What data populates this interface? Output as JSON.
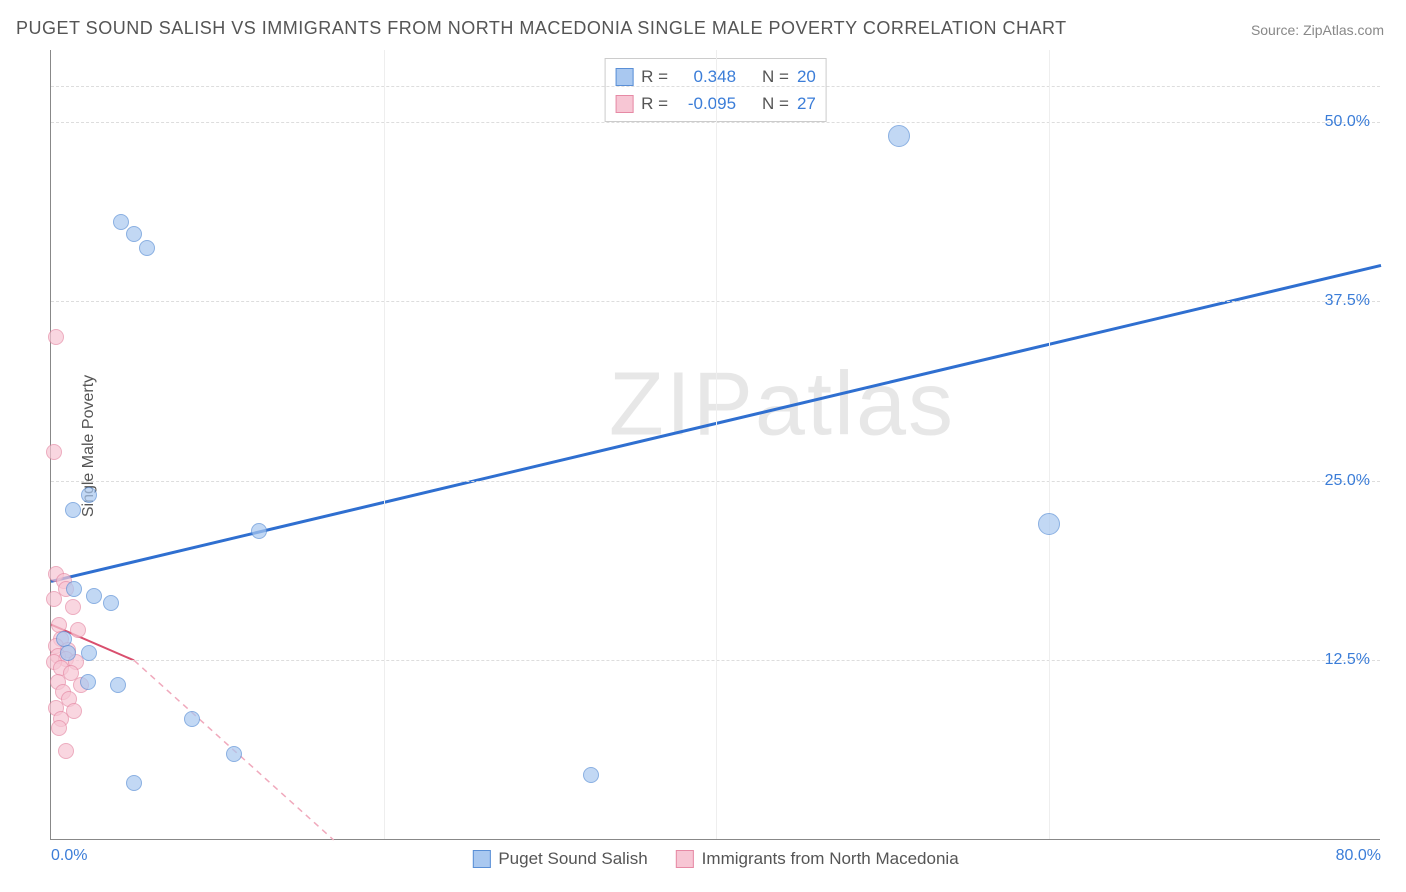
{
  "title": "PUGET SOUND SALISH VS IMMIGRANTS FROM NORTH MACEDONIA SINGLE MALE POVERTY CORRELATION CHART",
  "source": "Source: ZipAtlas.com",
  "ylabel": "Single Male Poverty",
  "watermark": "ZIPatlas",
  "chart": {
    "type": "scatter",
    "xlim": [
      0,
      80
    ],
    "ylim": [
      0,
      55
    ],
    "background_color": "#ffffff",
    "grid_color": "#dddddd",
    "axis_color": "#888888",
    "tick_color": "#3b7dd8",
    "tick_fontsize": 16,
    "yticks": [
      {
        "v": 12.5,
        "label": "12.5%"
      },
      {
        "v": 25.0,
        "label": "25.0%"
      },
      {
        "v": 37.5,
        "label": "37.5%"
      },
      {
        "v": 50.0,
        "label": "50.0%"
      }
    ],
    "xticks_minor": [
      20,
      40,
      60
    ],
    "xtick_left": {
      "v": 0,
      "label": "0.0%"
    },
    "xtick_right": {
      "v": 80,
      "label": "80.0%"
    }
  },
  "series": [
    {
      "name": "Puget Sound Salish",
      "color_fill": "#a9c8f0",
      "color_stroke": "#5a8fd6",
      "marker_size": 16,
      "r_value": "0.348",
      "n_value": "20",
      "trend": {
        "x1": 0,
        "y1": 18.0,
        "x2": 80,
        "y2": 40.0,
        "stroke": "#2f6fd0",
        "width": 3,
        "dash": "none"
      },
      "points": [
        {
          "x": 4.2,
          "y": 43.0
        },
        {
          "x": 5.0,
          "y": 42.2
        },
        {
          "x": 5.8,
          "y": 41.2
        },
        {
          "x": 51.0,
          "y": 49.0,
          "large": true
        },
        {
          "x": 2.3,
          "y": 24.0
        },
        {
          "x": 1.3,
          "y": 23.0
        },
        {
          "x": 12.5,
          "y": 21.5
        },
        {
          "x": 60.0,
          "y": 22.0,
          "large": true
        },
        {
          "x": 1.4,
          "y": 17.5
        },
        {
          "x": 2.6,
          "y": 17.0
        },
        {
          "x": 3.6,
          "y": 16.5
        },
        {
          "x": 0.8,
          "y": 14.0
        },
        {
          "x": 1.0,
          "y": 13.0
        },
        {
          "x": 2.3,
          "y": 13.0
        },
        {
          "x": 2.2,
          "y": 11.0
        },
        {
          "x": 4.0,
          "y": 10.8
        },
        {
          "x": 8.5,
          "y": 8.4
        },
        {
          "x": 11.0,
          "y": 6.0
        },
        {
          "x": 5.0,
          "y": 4.0
        },
        {
          "x": 32.5,
          "y": 4.5
        }
      ]
    },
    {
      "name": "Immigrants from North Macedonia",
      "color_fill": "#f7c6d4",
      "color_stroke": "#e68aa5",
      "marker_size": 16,
      "r_value": "-0.095",
      "n_value": "27",
      "trend_solid": {
        "x1": 0,
        "y1": 15.0,
        "x2": 5,
        "y2": 12.5,
        "stroke": "#d94f6e",
        "width": 2
      },
      "trend_dash": {
        "x1": 5,
        "y1": 12.5,
        "x2": 17,
        "y2": 0,
        "stroke": "#f0a9bc",
        "width": 1.5,
        "dash": "6 5"
      },
      "points": [
        {
          "x": 0.3,
          "y": 35.0
        },
        {
          "x": 0.2,
          "y": 27.0
        },
        {
          "x": 0.3,
          "y": 18.5
        },
        {
          "x": 0.8,
          "y": 18.0
        },
        {
          "x": 0.9,
          "y": 17.5
        },
        {
          "x": 0.2,
          "y": 16.8
        },
        {
          "x": 1.3,
          "y": 16.2
        },
        {
          "x": 0.5,
          "y": 15.0
        },
        {
          "x": 1.6,
          "y": 14.6
        },
        {
          "x": 0.6,
          "y": 14.0
        },
        {
          "x": 0.3,
          "y": 13.5
        },
        {
          "x": 1.0,
          "y": 13.2
        },
        {
          "x": 0.4,
          "y": 12.8
        },
        {
          "x": 0.9,
          "y": 12.6
        },
        {
          "x": 1.5,
          "y": 12.4
        },
        {
          "x": 0.2,
          "y": 12.4
        },
        {
          "x": 0.6,
          "y": 12.0
        },
        {
          "x": 1.2,
          "y": 11.6
        },
        {
          "x": 0.4,
          "y": 11.0
        },
        {
          "x": 1.8,
          "y": 10.8
        },
        {
          "x": 0.7,
          "y": 10.3
        },
        {
          "x": 1.1,
          "y": 9.8
        },
        {
          "x": 0.3,
          "y": 9.2
        },
        {
          "x": 1.4,
          "y": 9.0
        },
        {
          "x": 0.6,
          "y": 8.4
        },
        {
          "x": 0.5,
          "y": 7.8
        },
        {
          "x": 0.9,
          "y": 6.2
        }
      ]
    }
  ],
  "legend_top": {
    "r_label": "R =",
    "n_label": "N ="
  },
  "legend_bottom": {
    "items": [
      "Puget Sound Salish",
      "Immigrants from North Macedonia"
    ]
  }
}
